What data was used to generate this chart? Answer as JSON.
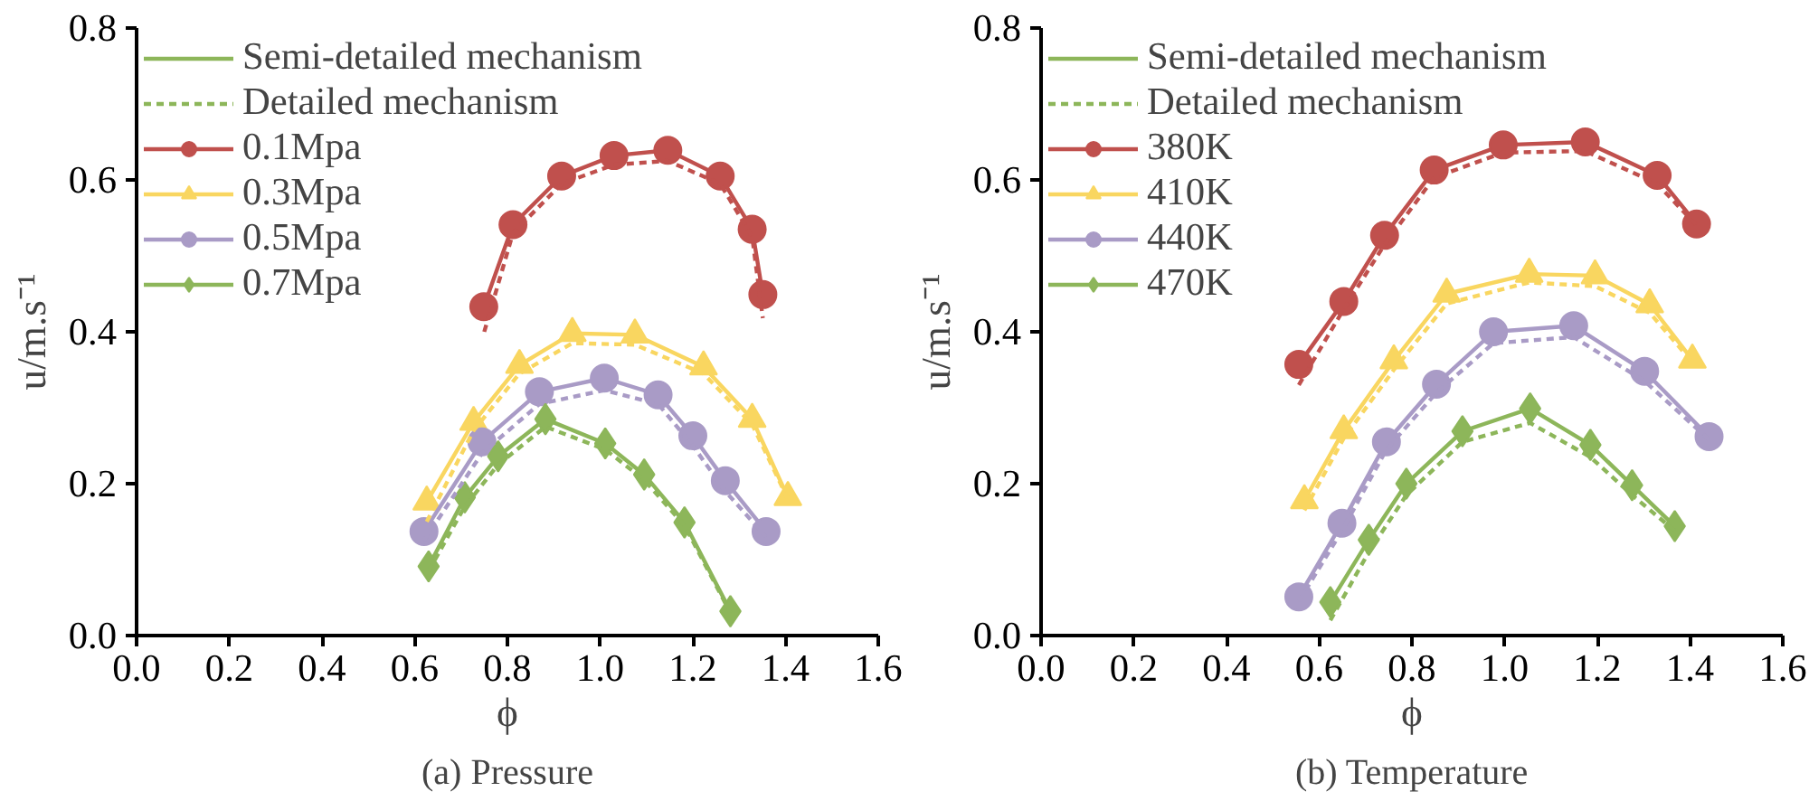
{
  "chart_data": [
    {
      "type": "line",
      "xlabel": "ϕ",
      "ylabel": "u/m.s⁻¹",
      "annotations": [
        "(a) Pressure"
      ],
      "xlim": [
        0,
        1.6
      ],
      "xticks": [
        {
          "value": 0,
          "label": "0.0"
        },
        {
          "value": 0.2,
          "label": "0.2"
        },
        {
          "value": 0.4,
          "label": "0.4"
        },
        {
          "value": 0.6,
          "label": "0.6"
        },
        {
          "value": 0.8,
          "label": "0.8"
        },
        {
          "value": 1.0,
          "label": "1.0"
        },
        {
          "value": 1.2,
          "label": "1.2"
        },
        {
          "value": 1.4,
          "label": "1.4"
        },
        {
          "value": 1.6,
          "label": "1.6"
        }
      ],
      "ylim": [
        0,
        0.8
      ],
      "yticks": [
        {
          "value": 0,
          "label": "0.0"
        },
        0.2,
        0.4,
        0.6,
        0.8
      ],
      "grid": false,
      "legend": "top left",
      "series": [
        {
          "name": "Semi-detailed mechanism",
          "color": "#8db65a",
          "line_style": "solid",
          "marker": "none"
        },
        {
          "name": "Detailed mechanism",
          "color": "#8db65a",
          "line_style": "dashed",
          "marker": "none"
        },
        {
          "name": "0.1Mpa",
          "color": "#c0504d",
          "line_style": "solid",
          "marker": "circle",
          "x": [
            0.749,
            0.812,
            0.917,
            1.03,
            1.146,
            1.259,
            1.328,
            1.351
          ],
          "values": [
            0.433,
            0.541,
            0.605,
            0.632,
            0.639,
            0.605,
            0.535,
            0.449
          ]
        },
        {
          "name": "0.3Mpa",
          "color": "#f9d660",
          "line_style": "solid",
          "marker": "triangle",
          "x": [
            0.626,
            0.727,
            0.826,
            0.94,
            1.075,
            1.223,
            1.328,
            1.405
          ],
          "values": [
            0.176,
            0.281,
            0.356,
            0.398,
            0.396,
            0.354,
            0.285,
            0.182
          ]
        },
        {
          "name": "0.5Mpa",
          "color": "#a99bc6",
          "line_style": "solid",
          "marker": "circle",
          "x": [
            0.62,
            0.745,
            0.869,
            1.009,
            1.125,
            1.2,
            1.27,
            1.358
          ],
          "values": [
            0.137,
            0.255,
            0.321,
            0.339,
            0.317,
            0.263,
            0.204,
            0.137
          ]
        },
        {
          "name": "0.7Mpa",
          "color": "#8db65a",
          "line_style": "solid",
          "marker": "diamond",
          "x": [
            0.63,
            0.708,
            0.78,
            0.882,
            1.011,
            1.095,
            1.182,
            1.281
          ],
          "values": [
            0.091,
            0.182,
            0.236,
            0.285,
            0.253,
            0.212,
            0.149,
            0.032
          ]
        },
        {
          "color": "#c0504d",
          "line_style": "dashed",
          "marker": "none",
          "x": [
            0.75,
            0.812,
            0.917,
            1.03,
            1.146,
            1.259,
            1.328,
            1.351
          ],
          "values": [
            0.4,
            0.53,
            0.595,
            0.62,
            0.625,
            0.595,
            0.525,
            0.418
          ]
        },
        {
          "color": "#f9d660",
          "line_style": "dashed",
          "marker": "none",
          "x": [
            0.626,
            0.727,
            0.826,
            0.94,
            1.075,
            1.223,
            1.328,
            1.405
          ],
          "values": [
            0.15,
            0.27,
            0.345,
            0.385,
            0.383,
            0.345,
            0.278,
            0.18
          ]
        },
        {
          "color": "#a99bc6",
          "line_style": "dashed",
          "marker": "none",
          "x": [
            0.62,
            0.745,
            0.869,
            1.009,
            1.125,
            1.2,
            1.27,
            1.358
          ],
          "values": [
            0.125,
            0.24,
            0.305,
            0.323,
            0.305,
            0.25,
            0.19,
            0.13
          ]
        },
        {
          "color": "#8db65a",
          "line_style": "dashed",
          "marker": "none",
          "x": [
            0.63,
            0.708,
            0.78,
            0.882,
            1.011,
            1.095,
            1.182,
            1.281
          ],
          "values": [
            0.085,
            0.17,
            0.225,
            0.275,
            0.245,
            0.205,
            0.145,
            0.03
          ]
        }
      ]
    },
    {
      "type": "line",
      "xlabel": "ϕ",
      "ylabel": "u/m.s⁻¹",
      "annotations": [
        "(b) Temperature"
      ],
      "xlim": [
        0,
        1.6
      ],
      "xticks": [
        {
          "value": 0,
          "label": "0.0"
        },
        0.2,
        0.4,
        0.6,
        0.8,
        {
          "value": 1.0,
          "label": "1.0"
        },
        1.2,
        1.4,
        1.6
      ],
      "ylim": [
        0,
        0.8
      ],
      "yticks": [
        {
          "value": 0,
          "label": "0.0"
        },
        0.2,
        0.4,
        0.6,
        0.8
      ],
      "grid": false,
      "legend": "top left",
      "series": [
        {
          "name": "Semi-detailed mechanism",
          "color": "#8db65a",
          "line_style": "solid",
          "marker": "none"
        },
        {
          "name": "Detailed mechanism",
          "color": "#8db65a",
          "line_style": "dashed",
          "marker": "none"
        },
        {
          "name": "380K",
          "color": "#c0504d",
          "line_style": "solid",
          "marker": "circle",
          "x": [
            0.556,
            0.653,
            0.741,
            0.848,
            0.997,
            1.174,
            1.329,
            1.414
          ],
          "values": [
            0.357,
            0.44,
            0.527,
            0.613,
            0.646,
            0.65,
            0.606,
            0.542
          ]
        },
        {
          "name": "410K",
          "color": "#f9d660",
          "line_style": "solid",
          "marker": "triangle",
          "x": [
            0.568,
            0.653,
            0.761,
            0.875,
            1.053,
            1.195,
            1.313,
            1.405
          ],
          "values": [
            0.178,
            0.27,
            0.362,
            0.45,
            0.476,
            0.474,
            0.436,
            0.363
          ]
        },
        {
          "name": "440K",
          "color": "#a99bc6",
          "line_style": "solid",
          "marker": "circle",
          "x": [
            0.556,
            0.649,
            0.745,
            0.853,
            0.976,
            1.149,
            1.302,
            1.441
          ],
          "values": [
            0.051,
            0.148,
            0.255,
            0.331,
            0.4,
            0.408,
            0.348,
            0.262
          ]
        },
        {
          "name": "470K",
          "color": "#8db65a",
          "line_style": "solid",
          "marker": "diamond",
          "x": [
            0.624,
            0.707,
            0.788,
            0.909,
            1.055,
            1.185,
            1.275,
            1.367
          ],
          "values": [
            0.044,
            0.126,
            0.2,
            0.269,
            0.299,
            0.251,
            0.198,
            0.144
          ]
        },
        {
          "color": "#c0504d",
          "line_style": "dashed",
          "marker": "none",
          "x": [
            0.556,
            0.653,
            0.741,
            0.848,
            0.997,
            1.174,
            1.329,
            1.414
          ],
          "values": [
            0.33,
            0.43,
            0.515,
            0.603,
            0.636,
            0.638,
            0.595,
            0.54
          ]
        },
        {
          "color": "#f9d660",
          "line_style": "dashed",
          "marker": "none",
          "x": [
            0.568,
            0.653,
            0.761,
            0.875,
            1.053,
            1.195,
            1.313,
            1.405
          ],
          "values": [
            0.165,
            0.26,
            0.35,
            0.437,
            0.465,
            0.46,
            0.425,
            0.36
          ]
        },
        {
          "color": "#a99bc6",
          "line_style": "dashed",
          "marker": "none",
          "x": [
            0.556,
            0.649,
            0.745,
            0.853,
            0.976,
            1.149,
            1.302,
            1.441
          ],
          "values": [
            0.045,
            0.138,
            0.245,
            0.32,
            0.385,
            0.393,
            0.335,
            0.258
          ]
        },
        {
          "color": "#8db65a",
          "line_style": "dashed",
          "marker": "none",
          "x": [
            0.624,
            0.707,
            0.788,
            0.909,
            1.055,
            1.185,
            1.275,
            1.367
          ],
          "values": [
            0.02,
            0.11,
            0.185,
            0.255,
            0.28,
            0.235,
            0.185,
            0.138
          ]
        }
      ]
    }
  ]
}
